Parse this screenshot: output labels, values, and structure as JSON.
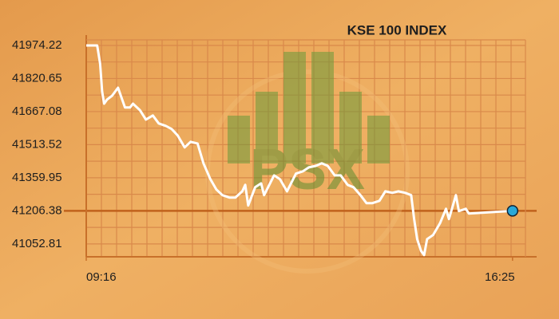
{
  "chart_data": {
    "type": "line",
    "title": "KSE 100 INDEX",
    "watermark": "PSX",
    "x": [
      "09:16",
      "09:27",
      "09:30",
      "09:32",
      "09:34",
      "09:37",
      "09:42",
      "09:48",
      "09:55",
      "10:00",
      "10:03",
      "10:10",
      "10:16",
      "10:23",
      "10:29",
      "10:36",
      "10:42",
      "10:48",
      "10:55",
      "11:01",
      "11:08",
      "11:14",
      "11:21",
      "11:27",
      "11:33",
      "11:40",
      "11:46",
      "11:53",
      "11:56",
      "11:59",
      "12:06",
      "12:12",
      "12:15",
      "12:25",
      "12:31",
      "12:38",
      "12:47",
      "12:54",
      "13:00",
      "13:07",
      "13:13",
      "13:19",
      "13:26",
      "13:32",
      "13:39",
      "13:45",
      "13:52",
      "13:58",
      "14:04",
      "14:11",
      "14:17",
      "14:24",
      "14:30",
      "14:37",
      "14:43",
      "14:46",
      "14:49",
      "14:53",
      "14:56",
      "14:59",
      "15:05",
      "15:12",
      "15:18",
      "15:21",
      "15:28",
      "15:31",
      "15:38",
      "15:41",
      "16:25"
    ],
    "series": [
      {
        "name": "KSE 100",
        "color": "#ffffff",
        "values": [
          41974,
          41974,
          41889,
          41760,
          41704,
          41723,
          41741,
          41778,
          41686,
          41686,
          41704,
          41674,
          41630,
          41649,
          41612,
          41601,
          41586,
          41556,
          41501,
          41527,
          41519,
          41427,
          41353,
          41305,
          41279,
          41268,
          41268,
          41297,
          41327,
          41231,
          41316,
          41334,
          41279,
          41371,
          41353,
          41297,
          41379,
          41390,
          41408,
          41415,
          41427,
          41415,
          41371,
          41371,
          41327,
          41316,
          41279,
          41242,
          41242,
          41253,
          41297,
          41290,
          41297,
          41290,
          41279,
          41168,
          41075,
          41020,
          41001,
          41075,
          41094,
          41149,
          41216,
          41168,
          41279,
          41205,
          41216,
          41194,
          41206.38
        ]
      }
    ],
    "xlim": [
      "09:16",
      "16:38"
    ],
    "xticks": [
      "09:16",
      "16:25"
    ],
    "ylim": [
      40993,
      42000
    ],
    "yticks": [
      41052.81,
      41206.38,
      41359.95,
      41513.52,
      41667.08,
      41820.65,
      41974.22
    ],
    "grid": true,
    "end_marker_color": "#29a8d8"
  }
}
